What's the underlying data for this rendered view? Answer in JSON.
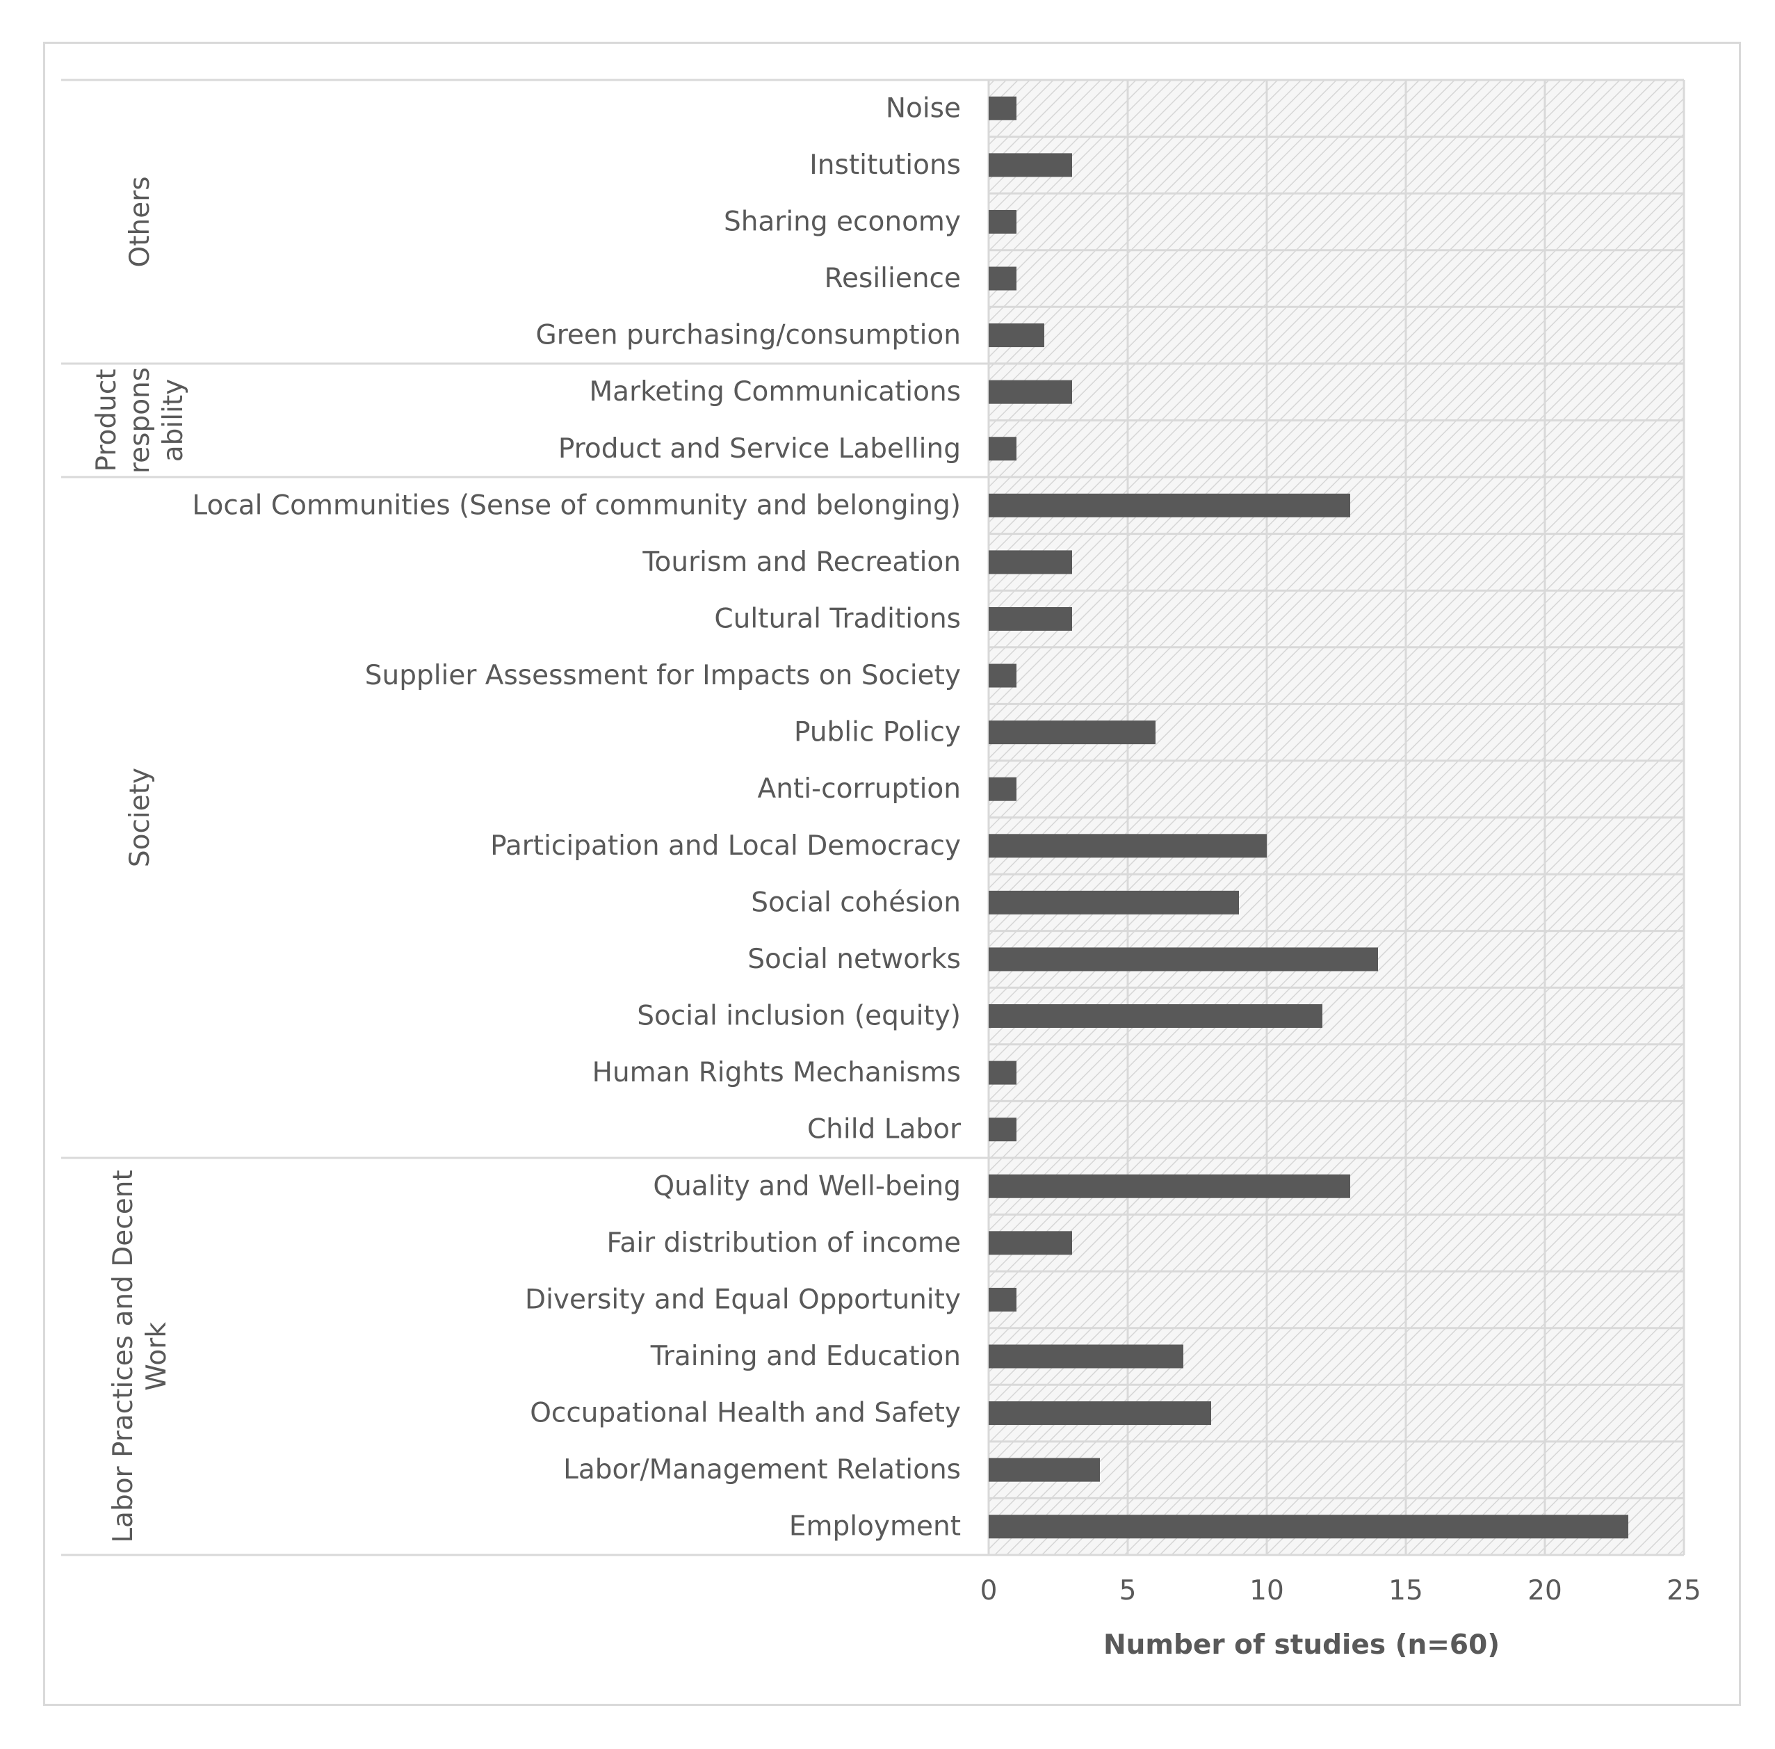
{
  "chart_data": {
    "type": "bar",
    "orientation": "horizontal",
    "xlabel": "Number of studies (n=60)",
    "xlim": [
      0,
      25
    ],
    "xticks": [
      0,
      5,
      10,
      15,
      20,
      25
    ],
    "bar_color": "#595959",
    "plot_background": "hatched light gray",
    "groups": [
      {
        "name": "Others",
        "categories": [
          "Noise",
          "Institutions",
          "Sharing economy",
          "Resilience",
          "Green purchasing/consumption"
        ],
        "values": [
          1,
          3,
          1,
          1,
          2
        ]
      },
      {
        "name": "Product respons ability",
        "name_lines": [
          "Product",
          "respons",
          "ability"
        ],
        "categories": [
          "Marketing Communications",
          "Product and Service Labelling"
        ],
        "values": [
          3,
          1
        ]
      },
      {
        "name": "Society",
        "categories": [
          "Local Communities (Sense of community and belonging)",
          "Tourism and Recreation",
          "Cultural Traditions",
          "Supplier Assessment for Impacts on Society",
          "Public Policy",
          "Anti-corruption",
          "Participation and Local Democracy",
          "Social cohésion",
          "Social networks",
          "Social inclusion (equity)",
          "Human Rights Mechanisms",
          "Child Labor"
        ],
        "values": [
          13,
          3,
          3,
          1,
          6,
          1,
          10,
          9,
          14,
          12,
          1,
          1
        ]
      },
      {
        "name": "Labor Practices and Decent Work",
        "name_lines": [
          "Labor Practices and Decent",
          "Work"
        ],
        "categories": [
          "Quality and Well-being",
          "Fair distribution of income",
          "Diversity and Equal Opportunity",
          "Training and Education",
          "Occupational Health and Safety",
          "Labor/Management Relations",
          "Employment"
        ],
        "values": [
          13,
          3,
          1,
          7,
          8,
          4,
          23
        ]
      }
    ]
  }
}
